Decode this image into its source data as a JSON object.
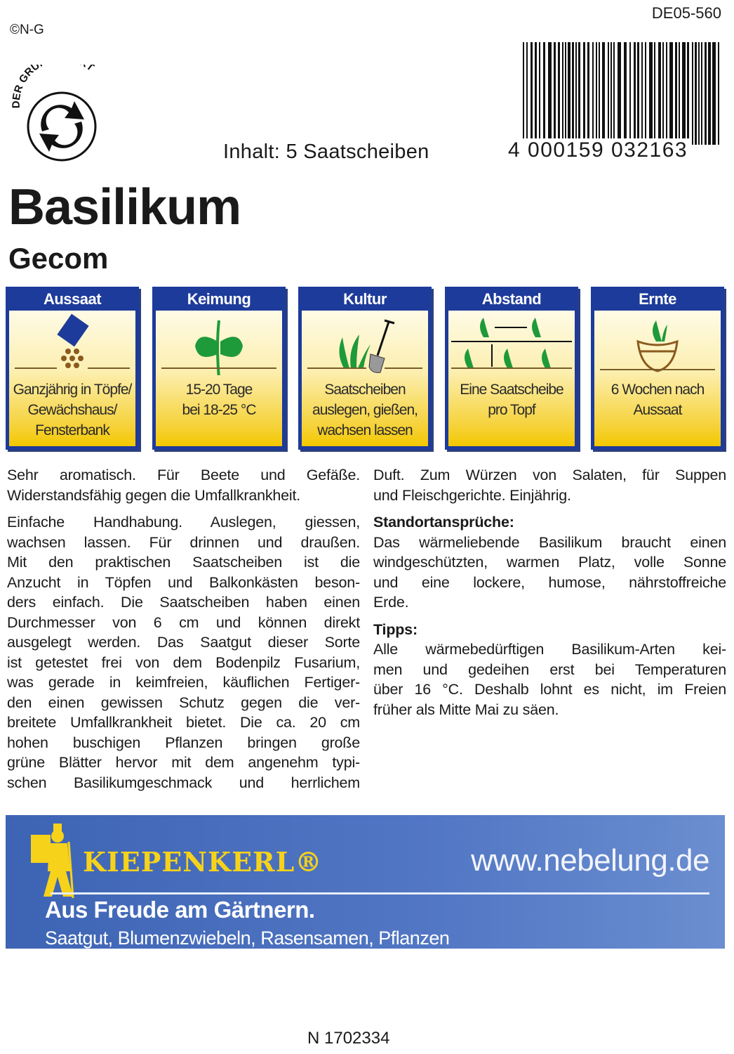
{
  "header": {
    "copyright": "©N-G",
    "code": "DE05-560",
    "green_dot_text": "DER GRÜNE PUNKT",
    "content": "Inhalt: 5 Saatscheiben",
    "barcode_number": "4 000159 032163"
  },
  "product": {
    "title": "Basilikum",
    "variety": "Gecom"
  },
  "panels": [
    {
      "title": "Aussaat",
      "icon": "seed-packet-icon",
      "text": [
        "Ganzjährig in Töpfe/",
        "Gewächshaus/",
        "Fensterbank"
      ]
    },
    {
      "title": "Keimung",
      "icon": "seedling-icon",
      "text": [
        "15-20 Tage",
        "bei 18-25 °C"
      ]
    },
    {
      "title": "Kultur",
      "icon": "spade-plant-icon",
      "text": [
        "Saatscheiben",
        "auslegen, gießen,",
        "wachsen lassen"
      ]
    },
    {
      "title": "Abstand",
      "icon": "spacing-icon",
      "text": [
        "Eine Saatscheibe",
        "pro Topf"
      ]
    },
    {
      "title": "Ernte",
      "icon": "harvest-basket-icon",
      "text": [
        "6 Wochen nach",
        "Aussaat"
      ]
    }
  ],
  "columns": [
    [
      {
        "heading": false,
        "lines": [
          "Sehr aromatisch. Für Beete und Gefäße.",
          "Widerstandsfähig gegen die Umfallkrankheit."
        ]
      },
      {
        "heading": false,
        "lines": [
          "Einfache Handhabung. Auslegen, giessen,",
          "wachsen lassen. Für drinnen und draußen.",
          "Mit den praktischen Saatscheiben ist die",
          "Anzucht in Töpfen und Balkonkästen beson-",
          "ders einfach. Die Saatscheiben haben einen",
          "Durchmesser von 6 cm und können direkt",
          "ausgelegt werden. Das Saatgut dieser Sorte",
          "ist getestet frei von dem Bodenpilz Fusarium,",
          "was gerade in keimfreien, käuflichen Fertiger-",
          "den einen gewissen Schutz gegen die ver-",
          "breitete Umfallkrankheit bietet. Die ca. 20 cm",
          "hohen buschigen Pflanzen bringen große",
          "grüne Blätter hervor mit dem angenehm typi-",
          "schen Basilikumgeschmack und herrlichem"
        ],
        "continues": true
      }
    ],
    [
      {
        "heading": false,
        "lines": [
          "Duft. Zum Würzen von Salaten, für Suppen",
          "und Fleischgerichte. Einjährig."
        ]
      },
      {
        "heading": "Standortansprüche:",
        "lines": [
          "Das wärmeliebende Basilikum braucht einen",
          "windgeschützten, warmen Platz, volle Sonne",
          "und eine lockere, humose, nährstoffreiche",
          "Erde."
        ]
      },
      {
        "heading": "Tipps:",
        "lines": [
          "Alle wärmebedürftigen Basilikum-Arten kei-",
          "men und gedeihen erst bei Temperaturen",
          "über 16 °C. Deshalb lohnt es nicht, im Freien",
          "früher als Mitte Mai zu säen."
        ]
      }
    ]
  ],
  "banner": {
    "brand": "KIEPENKERL®",
    "url": "www.nebelung.de",
    "slogan": "Aus Freude am Gärtnern.",
    "products": "Saatgut, Blumenzwiebeln, Rasensamen, Pflanzen"
  },
  "footer": {
    "number": "N 1702334"
  },
  "colors": {
    "panel_blue": "#1d3b9a",
    "panel_yellow": "#f3c800",
    "banner_blue": "#4d72c0",
    "brand_yellow": "#f6d21a",
    "plant_green": "#1e9a3a"
  }
}
